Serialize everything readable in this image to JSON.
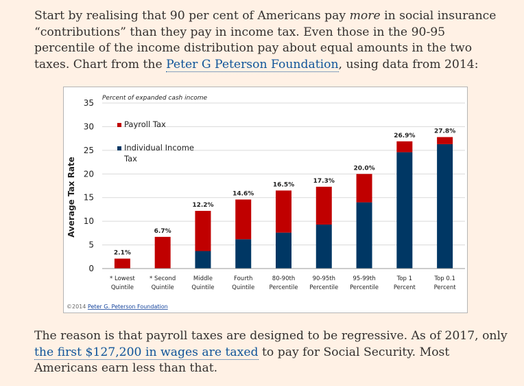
{
  "article": {
    "p1": {
      "t1": "Start by realising that 90 per cent of Americans pay ",
      "t2": "more",
      "t3": " in social insurance “contributions” than they pay in income tax. Even those in the 90-95 percentile of the income distribution pay about equal amounts in the two taxes. Chart from the ",
      "link": "Peter G Peterson Foundation",
      "t4": ", using data from 2014:"
    },
    "p2": {
      "t1": "The reason is that payroll taxes are designed to be regressive. As of 2017, only ",
      "link": "the first $127,200 in wages are taxed",
      "t2": " to pay for Social Security. Most Americans earn less than that."
    }
  },
  "chart_data": {
    "type": "bar",
    "stacked": true,
    "title": "Percent of expanded cash income",
    "ylabel": "Average Tax Rate",
    "xlabel": "",
    "ylim": [
      0,
      35
    ],
    "yticks": [
      0,
      5,
      10,
      15,
      20,
      25,
      30,
      35
    ],
    "categories": [
      [
        "Lowest",
        "Quintile"
      ],
      [
        "Second",
        "Quintile"
      ],
      [
        "Middle",
        "Quintile"
      ],
      [
        "Fourth",
        "Quintile"
      ],
      [
        "80-90th",
        "Percentile"
      ],
      [
        "90-95th",
        "Percentile"
      ],
      [
        "95-99th",
        "Percentile"
      ],
      [
        "Top 1",
        "Percent"
      ],
      [
        "Top 0.1",
        "Percent"
      ]
    ],
    "category_markers": [
      "*",
      "*",
      "",
      "",
      "",
      "",
      "",
      "",
      ""
    ],
    "series": [
      {
        "name": "Individual Income Tax",
        "legend_lines": [
          "Individual Income",
          "Tax"
        ],
        "color": "#003764",
        "values": [
          0,
          0,
          3.7,
          6.2,
          7.6,
          9.3,
          14.0,
          24.6,
          26.3
        ]
      },
      {
        "name": "Payroll Tax",
        "legend_lines": [
          "Payroll Tax"
        ],
        "color": "#c00000",
        "values": [
          2.1,
          6.7,
          8.5,
          8.4,
          8.9,
          8.0,
          6.0,
          2.3,
          1.5
        ]
      }
    ],
    "totals": [
      "2.1%",
      "6.7%",
      "12.2%",
      "14.6%",
      "16.5%",
      "17.3%",
      "20.0%",
      "26.9%",
      "27.8%"
    ],
    "legend_position": "top-left",
    "grid": true,
    "source": "©2014 ",
    "source_link": "Peter G. Peterson Foundation"
  }
}
